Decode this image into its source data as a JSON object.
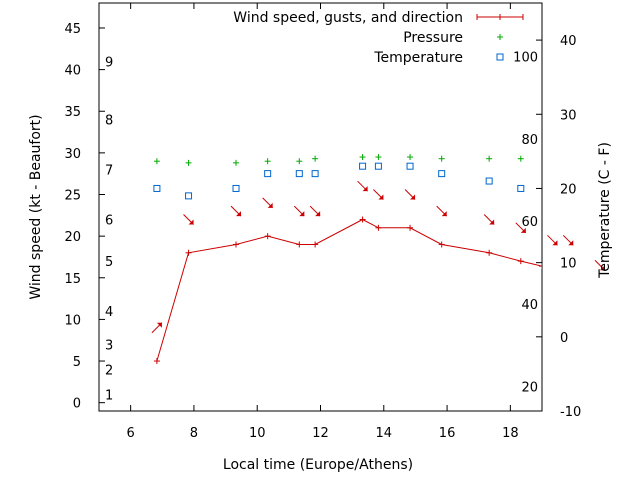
{
  "chart_data": {
    "type": "line",
    "xlabel": "Local time (Europe/Athens)",
    "ylabel_left": "Wind speed (kt - Beaufort)",
    "ylabel_right": "Temperature (C - F)",
    "xlim": [
      5,
      19
    ],
    "ylim_left": [
      -1,
      48
    ],
    "ylim_right": [
      -10,
      45
    ],
    "x_ticks": [
      6,
      8,
      10,
      12,
      14,
      16,
      18
    ],
    "y_left_ticks": [
      0,
      5,
      10,
      15,
      20,
      25,
      30,
      35,
      40,
      45
    ],
    "y_right_ticks": [
      -10,
      0,
      10,
      20,
      30,
      40
    ],
    "beaufort_labels": [
      {
        "text": "1",
        "kt": 1
      },
      {
        "text": "2",
        "kt": 4
      },
      {
        "text": "3",
        "kt": 7
      },
      {
        "text": "4",
        "kt": 11
      },
      {
        "text": "5",
        "kt": 17
      },
      {
        "text": "6",
        "kt": 22
      },
      {
        "text": "7",
        "kt": 28
      },
      {
        "text": "8",
        "kt": 34
      },
      {
        "text": "9",
        "kt": 41
      }
    ],
    "fahrenheit_labels": [
      {
        "text": "20",
        "c": -6.7
      },
      {
        "text": "40",
        "c": 4.4
      },
      {
        "text": "60",
        "c": 15.6
      },
      {
        "text": "80",
        "c": 26.7
      },
      {
        "text": "100",
        "c": 37.8
      }
    ],
    "series": [
      {
        "name": "Wind speed, gusts, and direction",
        "color": "#cc0000",
        "x": [
          6.83,
          7.83,
          9.33,
          10.33,
          11.33,
          11.83,
          13.33,
          13.83,
          14.83,
          15.83,
          17.33,
          18.33,
          19.0
        ],
        "y": [
          5,
          18,
          19,
          20,
          19,
          19,
          22,
          21,
          21,
          19,
          18,
          17,
          16.4
        ]
      },
      {
        "name": "Pressure",
        "color": "#00aa00",
        "x": [
          6.83,
          7.83,
          9.33,
          10.33,
          11.33,
          11.83,
          13.33,
          13.83,
          14.83,
          15.83,
          17.33,
          18.33
        ],
        "y": [
          29,
          28.8,
          28.8,
          29,
          29,
          29.3,
          29.5,
          29.5,
          29.5,
          29.3,
          29.3,
          29.3
        ]
      },
      {
        "name": "Temperature",
        "color": "#0066cc",
        "x": [
          6.83,
          7.83,
          9.33,
          10.33,
          11.33,
          11.83,
          13.33,
          13.83,
          14.83,
          15.83,
          17.33,
          18.33
        ],
        "y": [
          20,
          19,
          20,
          22,
          22,
          22,
          23,
          23,
          23,
          22,
          21,
          20
        ]
      }
    ],
    "wind_arrows": [
      {
        "x": 6.83,
        "kt": 9,
        "dir": "up-right"
      },
      {
        "x": 7.83,
        "kt": 22,
        "dir": "down-right"
      },
      {
        "x": 9.33,
        "kt": 23,
        "dir": "down-right"
      },
      {
        "x": 10.33,
        "kt": 24,
        "dir": "down-right"
      },
      {
        "x": 11.33,
        "kt": 23,
        "dir": "down-right"
      },
      {
        "x": 11.83,
        "kt": 23,
        "dir": "down-right"
      },
      {
        "x": 13.33,
        "kt": 26,
        "dir": "down-right"
      },
      {
        "x": 13.83,
        "kt": 25,
        "dir": "down-right"
      },
      {
        "x": 14.83,
        "kt": 25,
        "dir": "down-right"
      },
      {
        "x": 15.83,
        "kt": 23,
        "dir": "down-right"
      },
      {
        "x": 17.33,
        "kt": 22,
        "dir": "down-right"
      },
      {
        "x": 18.33,
        "kt": 21,
        "dir": "down-right"
      },
      {
        "x": 19.33,
        "kt": 19.5,
        "dir": "down-right"
      },
      {
        "x": 19.83,
        "kt": 19.5,
        "dir": "down-right"
      },
      {
        "x": 20.83,
        "kt": 16.5,
        "dir": "down-right"
      }
    ],
    "legend_position": "top-right",
    "grid": false
  }
}
